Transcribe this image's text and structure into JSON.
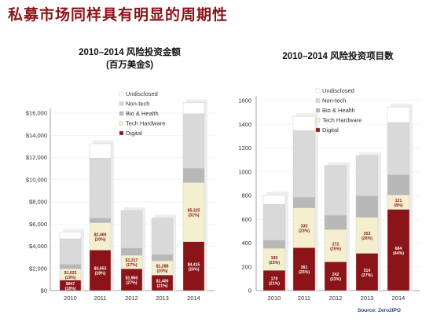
{
  "page_title": "私募市场同样具有明显的周期性",
  "source": "Source: Zero2IPO",
  "colors": {
    "Undisclosed": "#ffffff",
    "Non-tech": "#d9d9d9",
    "Bio & Health": "#b8b8b8",
    "Tech Hardware": "#f3efcf",
    "Digital": "#8b1418"
  },
  "chart_data": [
    {
      "type": "bar",
      "title": "2010–2014 风险投资金额",
      "subtitle": "(百万美金$)",
      "categories": [
        "2010",
        "2011",
        "2012",
        "2013",
        "2014"
      ],
      "ylim": [
        0,
        16000
      ],
      "yticks": [
        "$0",
        "$2,000",
        "$4,000",
        "$6,000",
        "$8,000",
        "$10,000",
        "$12,000",
        "$14,000",
        "$16,000"
      ],
      "ytick_values": [
        0,
        2000,
        4000,
        6000,
        8000,
        10000,
        12000,
        14000,
        16000
      ],
      "legend": [
        "Undisclosed",
        "Non-tech",
        "Bio & Health",
        "Tech Hardware",
        "Digital"
      ],
      "legend_position": "top-right",
      "series": [
        {
          "name": "Digital",
          "values": [
            947,
            3653,
            1960,
            1400,
            4415
          ],
          "labels": [
            [
              "$947",
              "(18%)"
            ],
            [
              "$3,653",
              "(28%)"
            ],
            [
              "$1,960",
              "(27%)"
            ],
            [
              "$1,400",
              "(21%)"
            ],
            [
              "$4,415",
              "(26%)"
            ]
          ]
        },
        {
          "name": "Tech Hardware",
          "values": [
            1023,
            2469,
            1217,
            1288,
            5325
          ],
          "labels": [
            [
              "$1,023",
              "(19%)"
            ],
            [
              "$2,469",
              "(20%)"
            ],
            [
              "$1,217",
              "(17%)"
            ],
            [
              "$1,288",
              "(20%)"
            ],
            [
              "$5,325",
              "(31%)"
            ]
          ]
        },
        {
          "name": "Bio & Health",
          "values": [
            400,
            420,
            650,
            550,
            1300
          ],
          "labels": []
        },
        {
          "name": "Non-tech",
          "values": [
            2300,
            5400,
            3400,
            3300,
            4900
          ],
          "labels": []
        },
        {
          "name": "Undisclosed",
          "values": [
            600,
            1300,
            0,
            0,
            1000
          ],
          "labels": []
        }
      ]
    },
    {
      "type": "bar",
      "title": "2010–2014 风险投资项目数",
      "categories": [
        "2010",
        "2011",
        "2012",
        "2013",
        "2014"
      ],
      "ylim": [
        0,
        1600
      ],
      "yticks": [
        "0",
        "200",
        "400",
        "600",
        "800",
        "1000",
        "1200",
        "1400",
        "1600"
      ],
      "ytick_values": [
        0,
        200,
        400,
        600,
        800,
        1000,
        1200,
        1400,
        1600
      ],
      "legend": [
        "Undisclosed",
        "Non-tech",
        "Bio & Health",
        "Tech Hardware",
        "Digital"
      ],
      "legend_position": "top-right",
      "series": [
        {
          "name": "Digital",
          "values": [
            170,
            361,
            242,
            314,
            684
          ],
          "labels": [
            [
              "170",
              "(21%)"
            ],
            [
              "361",
              "(25%)"
            ],
            [
              "242",
              "(23%)"
            ],
            [
              "314",
              "(27%)"
            ],
            [
              "684",
              "(44%)"
            ]
          ]
        },
        {
          "name": "Tech Hardware",
          "values": [
            185,
            335,
            272,
            303,
            121
          ],
          "labels": [
            [
              "185",
              "(23%)"
            ],
            [
              "335",
              "(23%)"
            ],
            [
              "272",
              "(25%)"
            ],
            [
              "303",
              "(26%)"
            ],
            [
              "121",
              "(8%)"
            ]
          ]
        },
        {
          "name": "Bio & Health",
          "values": [
            70,
            90,
            120,
            180,
            170
          ],
          "labels": []
        },
        {
          "name": "Non-tech",
          "values": [
            300,
            560,
            420,
            340,
            440
          ],
          "labels": []
        },
        {
          "name": "Undisclosed",
          "values": [
            80,
            120,
            0,
            0,
            130
          ],
          "labels": []
        }
      ]
    }
  ]
}
